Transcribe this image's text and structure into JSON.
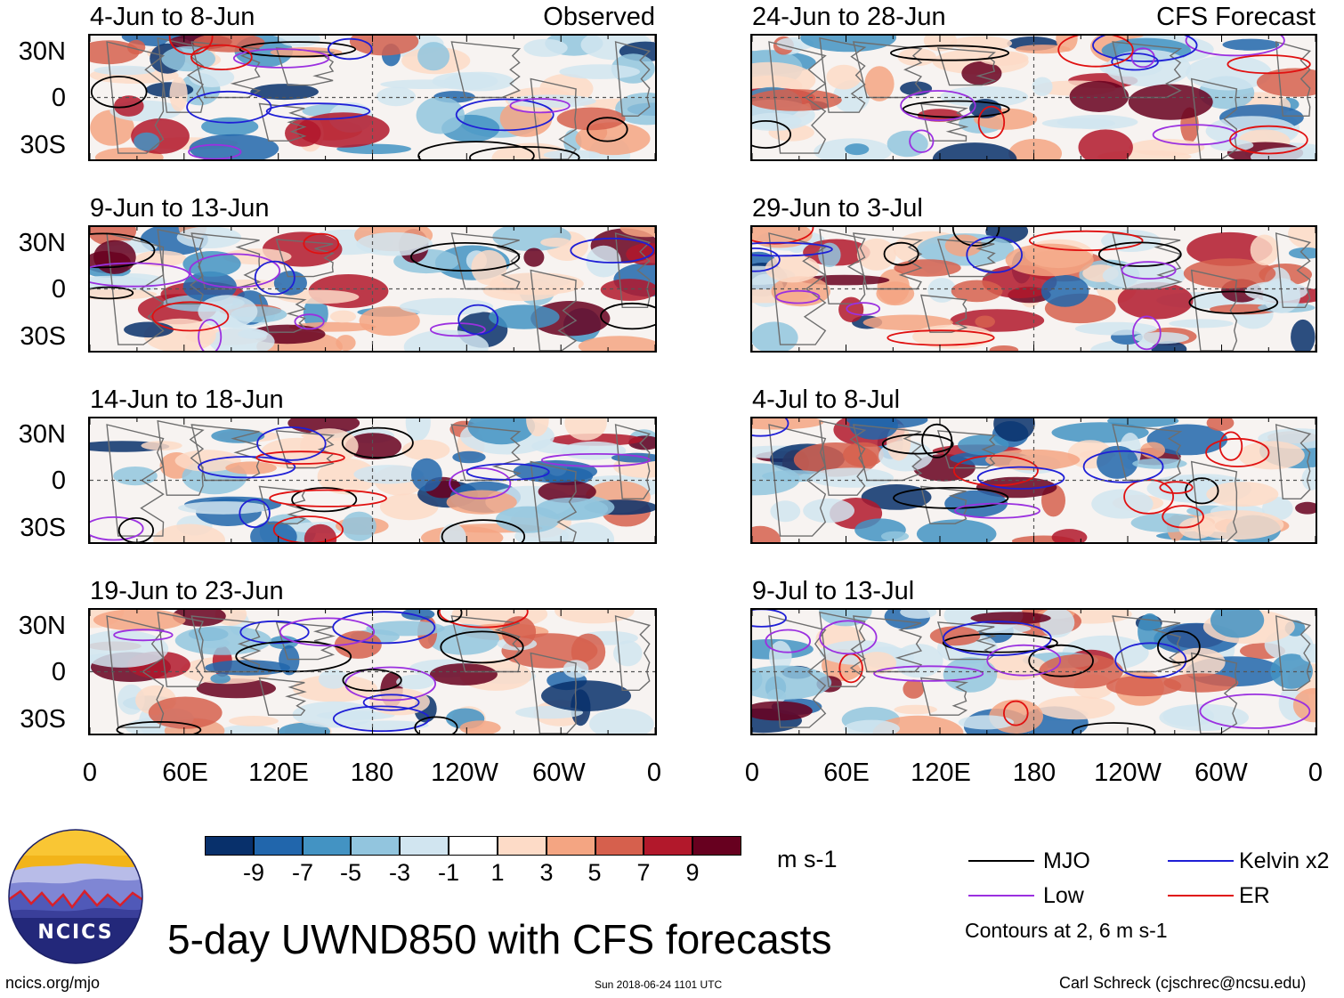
{
  "chart_data": {
    "type": "heatmap",
    "title": "5-day UWND850 with CFS forecasts",
    "variable": "UWND850",
    "units": "m s-1",
    "panels": [
      {
        "name": "observed-1",
        "period": "4-Jun to 8-Jun",
        "tag": "Observed"
      },
      {
        "name": "observed-2",
        "period": "9-Jun to 13-Jun",
        "tag": ""
      },
      {
        "name": "observed-3",
        "period": "14-Jun to 18-Jun",
        "tag": ""
      },
      {
        "name": "observed-4",
        "period": "19-Jun to 23-Jun",
        "tag": ""
      },
      {
        "name": "forecast-1",
        "period": "24-Jun to 28-Jun",
        "tag": "CFS Forecast"
      },
      {
        "name": "forecast-2",
        "period": "29-Jun to 3-Jul",
        "tag": ""
      },
      {
        "name": "forecast-3",
        "period": "4-Jul to 8-Jul",
        "tag": ""
      },
      {
        "name": "forecast-4",
        "period": "9-Jul to 13-Jul",
        "tag": ""
      }
    ],
    "y_ticks": [
      "30N",
      "0",
      "30S"
    ],
    "x_ticks": [
      "0",
      "60E",
      "120E",
      "180",
      "120W",
      "60W",
      "0"
    ],
    "xlim": [
      0,
      360
    ],
    "ylim": [
      -40,
      40
    ],
    "colorbar": {
      "colors": [
        "#08306b",
        "#2166ac",
        "#4393c3",
        "#92c5de",
        "#d1e5f0",
        "#ffffff",
        "#fddbc7",
        "#f4a582",
        "#d6604d",
        "#b2182b",
        "#67001f"
      ],
      "tick_labels": [
        "-9",
        "-7",
        "-5",
        "-3",
        "-1",
        "1",
        "3",
        "5",
        "7",
        "9"
      ]
    },
    "legend": [
      {
        "label": "MJO",
        "color": "#000000"
      },
      {
        "label": "Kelvin x2",
        "color": "#1f1fd6"
      },
      {
        "label": "Low",
        "color": "#9b30e0"
      },
      {
        "label": "ER",
        "color": "#e01010"
      }
    ],
    "contour_note": "Contours at 2, 6 m s-1"
  },
  "logo": {
    "text": "NCICS"
  },
  "footer": {
    "left": "ncics.org/mjo",
    "center": "Sun 2018-06-24 1101 UTC",
    "right": "Carl Schreck (cjschrec@ncsu.edu)"
  }
}
